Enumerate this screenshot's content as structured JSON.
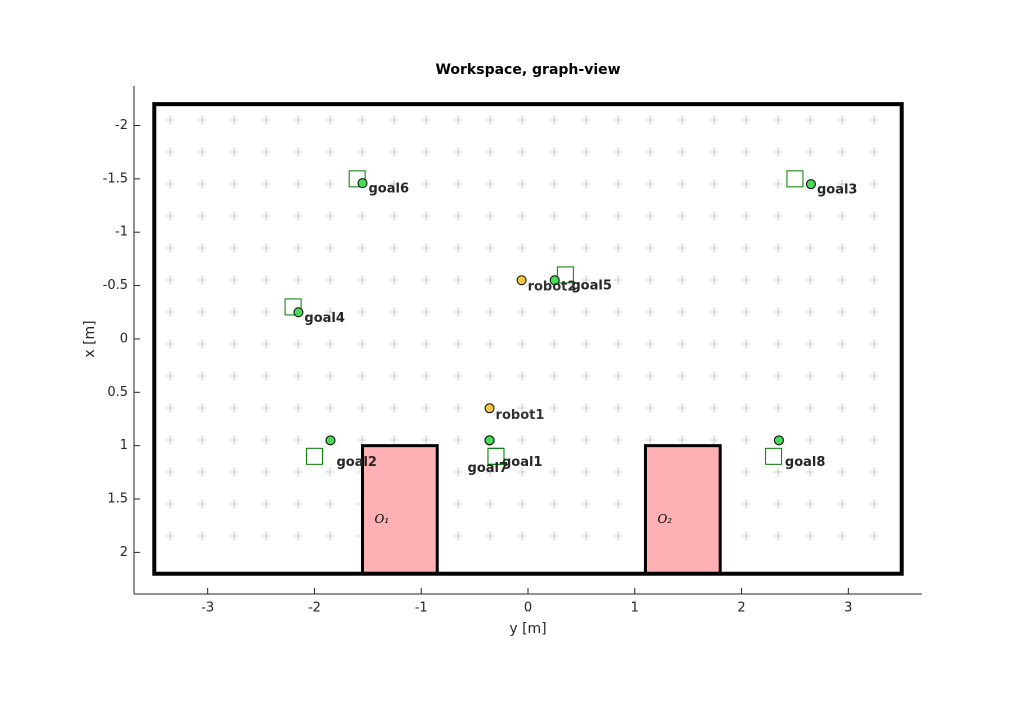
{
  "chart_data": {
    "type": "workspace",
    "title": "Workspace, graph-view",
    "x_label": "y [m]",
    "y_label": "x [m]",
    "xlim": [
      -3.69,
      3.69
    ],
    "ylim": [
      -2.37,
      2.39
    ],
    "y_reversed": true,
    "xticks": [
      -3,
      -2,
      -1,
      0,
      1,
      2,
      3
    ],
    "yticks": [
      -2,
      -1.5,
      -1,
      -0.5,
      0,
      0.5,
      1,
      1.5,
      2
    ],
    "workspace": {
      "y": [
        -3.5,
        3.5
      ],
      "x": [
        -2.2,
        2.2
      ]
    },
    "obstacles": [
      {
        "label": "O₁",
        "y": [
          -1.55,
          -0.85
        ],
        "x": [
          1.0,
          2.2
        ]
      },
      {
        "label": "O₂",
        "y": [
          1.1,
          1.8
        ],
        "x": [
          1.0,
          2.2
        ]
      }
    ],
    "obstacle_color": "#ffb0b3",
    "robot_color": "#f5c842",
    "goal_color": "#44dd55",
    "goal_label_color": "#007a00",
    "robots": [
      {
        "label": "robot1",
        "y": -0.36,
        "x": 0.65
      },
      {
        "label": "robot2",
        "y": -0.06,
        "x": -0.55
      }
    ],
    "goals": [
      {
        "label": "goal1",
        "y": -0.36,
        "x": 0.95,
        "target_y": -0.3,
        "target_x": 1.1
      },
      {
        "label": "goal2",
        "y": -1.85,
        "x": 0.95,
        "target_y": -2.0,
        "target_x": 1.1
      },
      {
        "label": "goal3",
        "y": 2.65,
        "x": -1.45,
        "target_y": 2.5,
        "target_x": -1.5
      },
      {
        "label": "goal4",
        "y": -2.15,
        "x": -0.25,
        "target_y": -2.2,
        "target_x": -0.3
      },
      {
        "label": "goal5",
        "y": 0.25,
        "x": -0.55,
        "target_y": 0.35,
        "target_x": -0.6
      },
      {
        "label": "goal6",
        "y": -1.55,
        "x": -1.46,
        "target_y": -1.6,
        "target_x": -1.5
      },
      {
        "label": "goal7",
        "y": -0.36,
        "x": 0.95,
        "target_y": -0.3,
        "target_x": 1.1
      },
      {
        "label": "goal8",
        "y": 2.35,
        "x": 0.95,
        "target_y": 2.3,
        "target_x": 1.1
      }
    ]
  }
}
